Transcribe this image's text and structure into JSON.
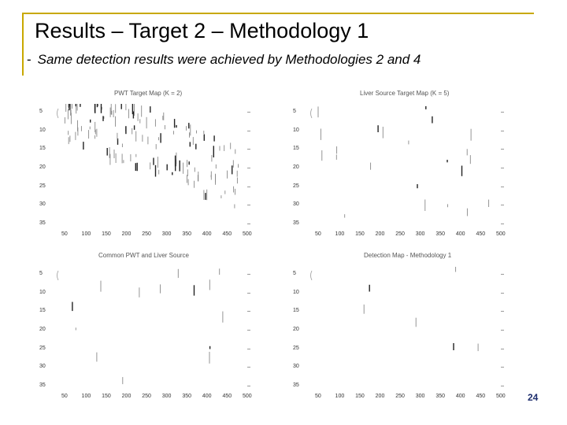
{
  "slide": {
    "title": "Results – Target 2 – Methodology 1",
    "bullet_dash": "-",
    "subtitle": "Same detection results were achieved by Methodologies 2 and 4",
    "page_number": "24",
    "accent_color": "#c8a800"
  },
  "chart_data": [
    {
      "type": "scatter",
      "title": "PWT Target Map (K = 2)",
      "y_ticks": [
        "5",
        "10",
        "15",
        "20",
        "25",
        "30",
        "35"
      ],
      "x_ticks": [
        "50",
        "100",
        "150",
        "200",
        "250",
        "300",
        "350",
        "400",
        "450",
        "500"
      ],
      "density": "high"
    },
    {
      "type": "scatter",
      "title": "Liver Source Target Map (K = 5)",
      "y_ticks": [
        "5",
        "10",
        "15",
        "20",
        "25",
        "30",
        "35"
      ],
      "x_ticks": [
        "50",
        "100",
        "150",
        "200",
        "250",
        "300",
        "350",
        "400",
        "450",
        "500"
      ],
      "density": "low"
    },
    {
      "type": "scatter",
      "title": "Common PWT and Liver Source",
      "y_ticks": [
        "5",
        "10",
        "15",
        "20",
        "25",
        "30",
        "35"
      ],
      "x_ticks": [
        "50",
        "100",
        "150",
        "200",
        "250",
        "300",
        "350",
        "400",
        "450",
        "500"
      ],
      "density": "sparse"
    },
    {
      "type": "scatter",
      "title": "Detection Map - Methodology 1",
      "y_ticks": [
        "5",
        "10",
        "15",
        "20",
        "25",
        "30",
        "35"
      ],
      "x_ticks": [
        "50",
        "100",
        "150",
        "200",
        "250",
        "300",
        "350",
        "400",
        "450",
        "500"
      ],
      "density": "minimal"
    }
  ]
}
